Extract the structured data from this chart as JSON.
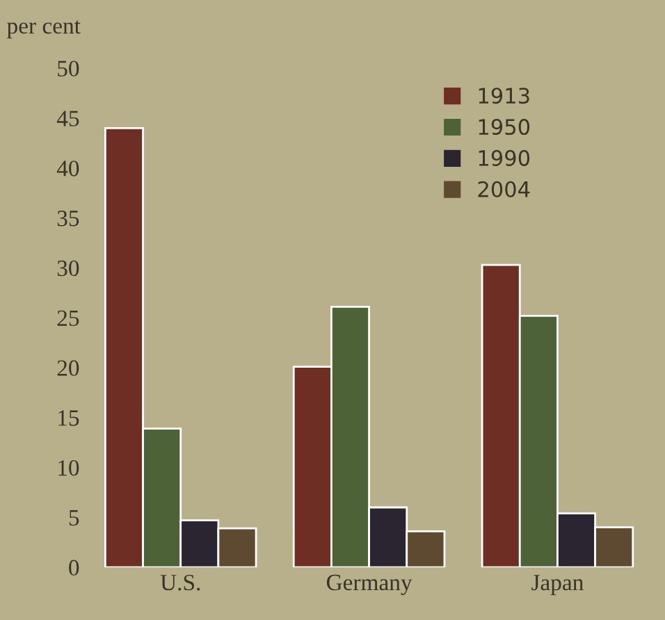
{
  "chart_data": {
    "type": "bar",
    "ylabel": "per cent",
    "categories": [
      "U.S.",
      "Germany",
      "Japan"
    ],
    "series": [
      {
        "name": "1913",
        "color": "#6e2e24",
        "values": [
          44,
          20.1,
          30.3
        ]
      },
      {
        "name": "1950",
        "color": "#4e6238",
        "values": [
          13.9,
          26.1,
          25.2
        ]
      },
      {
        "name": "1990",
        "color": "#2a2530",
        "values": [
          4.7,
          6.0,
          5.4
        ]
      },
      {
        "name": "2004",
        "color": "#5e4a30",
        "values": [
          3.9,
          3.6,
          4.0
        ]
      }
    ],
    "ylim": [
      0,
      50
    ],
    "yticks": [
      0,
      5,
      10,
      15,
      20,
      25,
      30,
      35,
      40,
      45,
      50
    ],
    "grid": false,
    "legend": "top right"
  }
}
